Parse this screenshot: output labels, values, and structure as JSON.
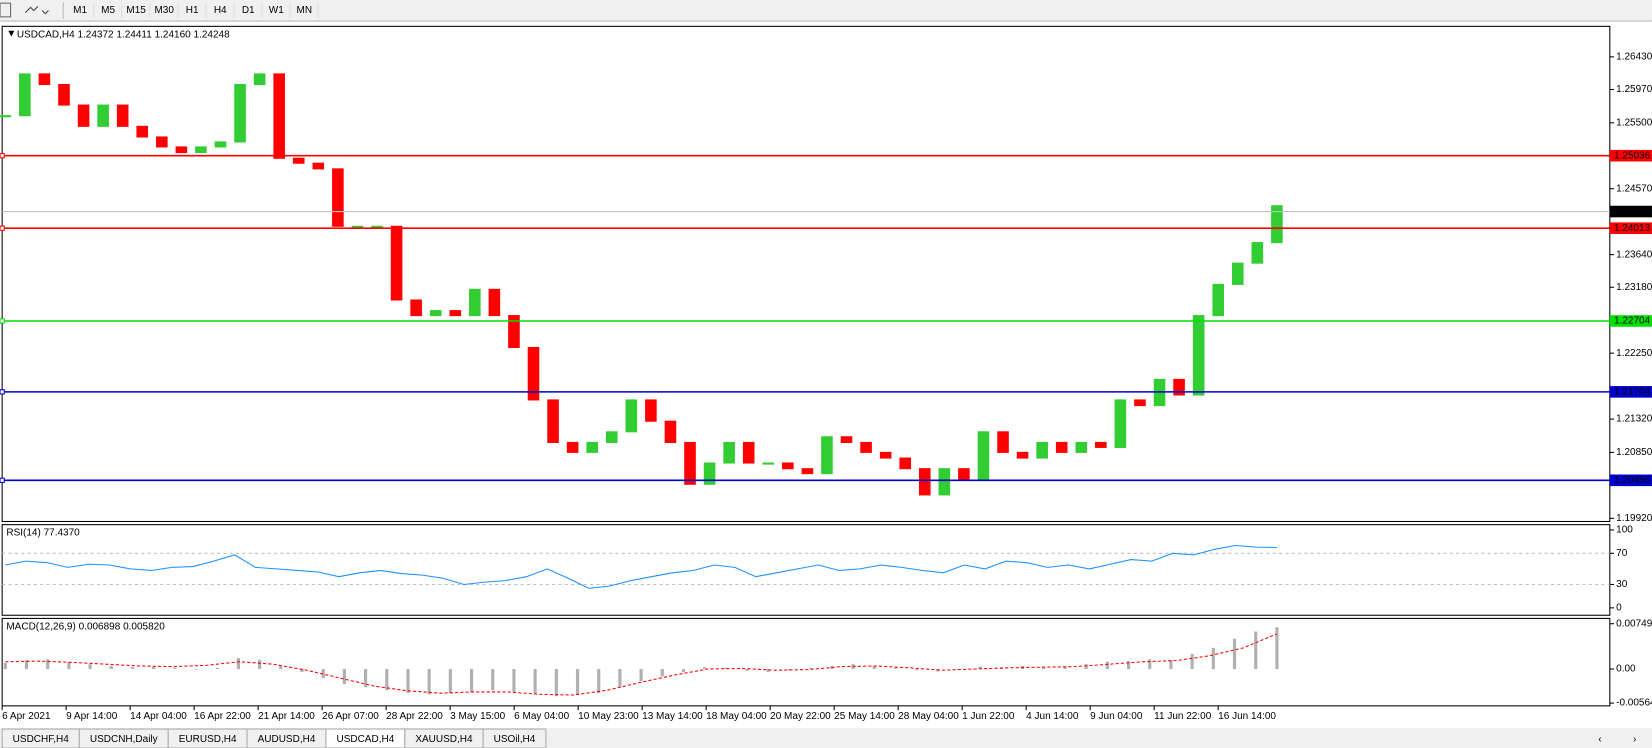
{
  "toolbar": {
    "timeframes": [
      "M1",
      "M5",
      "M15",
      "M30",
      "H1",
      "H4",
      "D1",
      "W1",
      "MN"
    ]
  },
  "chart_data": [
    {
      "type": "candlestick",
      "title": "USDCAD,H4  1.24372 1.24411 1.24160 1.24248",
      "values": [
        1.256,
        1.2619,
        1.2604,
        1.2575,
        1.2545,
        1.2575,
        1.2545,
        1.253,
        1.2516,
        1.2508,
        1.2516,
        1.2523,
        1.2604,
        1.2619,
        1.25,
        1.2493,
        1.2485,
        1.2404,
        1.2404,
        1.2404,
        1.23,
        1.2278,
        1.2285,
        1.2278,
        1.2315,
        1.2278,
        1.2233,
        1.2159,
        1.2099,
        1.2085,
        1.2099,
        1.2114,
        1.2159,
        1.2129,
        1.2099,
        1.204,
        1.207,
        1.2099,
        1.207,
        1.207,
        1.2062,
        1.2055,
        1.2107,
        1.2099,
        1.2085,
        1.2077,
        1.2062,
        1.2025,
        1.2062,
        1.2047,
        1.2114,
        1.2085,
        1.2077,
        1.2099,
        1.2085,
        1.2099,
        1.2092,
        1.2159,
        1.2151,
        1.2188,
        1.2166,
        1.2278,
        1.2322,
        1.2352,
        1.2381,
        1.2433
      ],
      "up_color": "#32cd32",
      "down_color": "#ff0000",
      "ylim": [
        1.19875,
        1.26861
      ],
      "yticks": [
        {
          "value": 1.2643,
          "label": "1.26430"
        },
        {
          "value": 1.2597,
          "label": "1.25970"
        },
        {
          "value": 1.255,
          "label": "1.25500"
        },
        {
          "value": 1.2457,
          "label": "1.24570"
        },
        {
          "value": 1.2364,
          "label": "1.23640"
        },
        {
          "value": 1.2318,
          "label": "1.23180"
        },
        {
          "value": 1.2225,
          "label": "1.22250"
        },
        {
          "value": 1.2132,
          "label": "1.21320"
        },
        {
          "value": 1.2085,
          "label": "1.20850"
        },
        {
          "value": 1.1992,
          "label": "1.19920"
        }
      ],
      "levels": [
        {
          "value": 1.25036,
          "color": "#ff0000"
        },
        {
          "value": 1.24013,
          "color": "#ff0000"
        },
        {
          "value": 1.22704,
          "color": "#00e000"
        },
        {
          "value": 1.21704,
          "color": "#0000cc"
        },
        {
          "value": 1.20456,
          "color": "#0000cc"
        }
      ],
      "current_price": 1.24248,
      "x_labels": [
        "6 Apr 2021",
        "9 Apr 14:00",
        "14 Apr 04:00",
        "16 Apr 22:00",
        "21 Apr 14:00",
        "26 Apr 07:00",
        "28 Apr 22:00",
        "3 May 15:00",
        "6 May 04:00",
        "10 May 23:00",
        "13 May 14:00",
        "18 May 04:00",
        "20 May 22:00",
        "25 May 14:00",
        "28 May 04:00",
        "1 Jun 22:00",
        "4 Jun 14:00",
        "9 Jun 04:00",
        "11 Jun 22:00",
        "16 Jun 14:00"
      ]
    },
    {
      "type": "line",
      "title": "RSI(14) 77.4370",
      "values": [
        55,
        60,
        58,
        52,
        56,
        55,
        50,
        48,
        52,
        53,
        60,
        68,
        52,
        50,
        48,
        46,
        40,
        45,
        48,
        44,
        42,
        38,
        30,
        33,
        35,
        40,
        50,
        38,
        25,
        28,
        35,
        40,
        45,
        48,
        55,
        52,
        40,
        45,
        50,
        55,
        48,
        50,
        55,
        52,
        48,
        45,
        55,
        50,
        60,
        58,
        52,
        55,
        50,
        56,
        62,
        60,
        70,
        68,
        75,
        80,
        78,
        77.437
      ],
      "color": "#1e90ff",
      "ylim": [
        -9.5,
        106.8
      ],
      "yticks": [
        100,
        70,
        30,
        0
      ],
      "levels": [
        70,
        30
      ]
    },
    {
      "type": "bar",
      "title": "MACD(12,26,9) 0.006898 0.005820",
      "values": [
        0.001,
        0.0015,
        0.0016,
        0.0012,
        0.0008,
        0.0005,
        0.0003,
        0.0004,
        0.0002,
        0.0,
        0.0002,
        0.0018,
        0.0015,
        0.0005,
        -0.0005,
        -0.0015,
        -0.0025,
        -0.003,
        -0.0035,
        -0.004,
        -0.0042,
        -0.004,
        -0.0038,
        -0.0035,
        -0.0038,
        -0.0042,
        -0.0045,
        -0.0043,
        -0.004,
        -0.003,
        -0.002,
        -0.0012,
        -0.0005,
        0.0003,
        0.0002,
        -0.0003,
        -0.0005,
        -0.0002,
        0.0002,
        0.0005,
        0.0008,
        0.0005,
        0.0002,
        -0.0002,
        -0.0004,
        0.0,
        0.0004,
        0.0003,
        0.0005,
        0.0002,
        0.0004,
        0.0008,
        0.0012,
        0.0013,
        0.0016,
        0.0015,
        0.0025,
        0.0035,
        0.005,
        0.0062,
        0.006898
      ],
      "signal": [
        0.0012,
        0.0013,
        0.0011,
        0.0008,
        0.0005,
        0.0004,
        0.0006,
        0.0012,
        0.0008,
        -0.0002,
        -0.0015,
        -0.0028,
        -0.0036,
        -0.004,
        -0.0038,
        -0.0038,
        -0.0042,
        -0.0043,
        -0.0035,
        -0.0022,
        -0.001,
        0.0,
        0.0001,
        -0.0002,
        -0.0001,
        0.0004,
        0.0005,
        0.0002,
        -0.0002,
        0.0,
        0.0002,
        0.0003,
        0.0004,
        0.0008,
        0.0012,
        0.0014,
        0.0022,
        0.0035,
        0.00582
      ],
      "color": "#b0b0b0",
      "signal_color": "#ff0000",
      "ylim": [
        -0.0061,
        0.00837
      ],
      "yticks": [
        0.007495,
        {
          "value": 0,
          "label": "0.00"
        },
        {
          "value": -0.005641,
          "label": "-0.00564"
        }
      ]
    }
  ],
  "tabs": {
    "items": [
      "USDCHF,H4",
      "USDCNH,Daily",
      "EURUSD,H4",
      "AUDUSD,H4",
      "USDCAD,H4",
      "XAUUSD,H4",
      "USOil,H4"
    ],
    "active": 4
  }
}
